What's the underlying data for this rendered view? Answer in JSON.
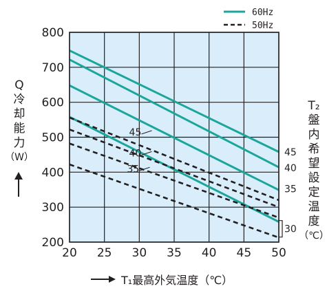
{
  "chart_data": {
    "type": "line",
    "title": "",
    "xlabel": "T₁最高外気温度（℃）",
    "ylabel_chars": [
      "Q",
      "冷",
      "却",
      "能",
      "力",
      "（W）"
    ],
    "right_label_chars": [
      "T₂",
      "盤",
      "内",
      "希",
      "望",
      "設",
      "定",
      "温",
      "度",
      "（℃）"
    ],
    "xlim": [
      20,
      50
    ],
    "ylim": [
      200,
      800
    ],
    "x_ticks": [
      "20",
      "25",
      "30",
      "35",
      "40",
      "45",
      "50"
    ],
    "y_ticks": [
      "200",
      "300",
      "400",
      "500",
      "600",
      "700",
      "800"
    ],
    "grid": true,
    "legend_position": "top-right",
    "legend": [
      {
        "label": "60Hz",
        "style": "solid",
        "color": "#1aa69a"
      },
      {
        "label": "50Hz",
        "style": "dashed",
        "color": "#231f20"
      }
    ],
    "series": [
      {
        "group": "60Hz",
        "t2": "45",
        "x": [
          20,
          50
        ],
        "y": [
          748,
          458
        ]
      },
      {
        "group": "60Hz",
        "t2": "40",
        "x": [
          20,
          50
        ],
        "y": [
          722,
          414
        ]
      },
      {
        "group": "60Hz",
        "t2": "35",
        "x": [
          20,
          50
        ],
        "y": [
          648,
          349
        ]
      },
      {
        "group": "60Hz",
        "t2": "30",
        "x": [
          20,
          50
        ],
        "y": [
          558,
          258
        ]
      },
      {
        "group": "50Hz",
        "t2": "45",
        "x": [
          20,
          50
        ],
        "y": [
          556,
          320
        ]
      },
      {
        "group": "50Hz",
        "t2": "40",
        "x": [
          20,
          50
        ],
        "y": [
          522,
          300
        ]
      },
      {
        "group": "50Hz",
        "t2": "35",
        "x": [
          20,
          50
        ],
        "y": [
          482,
          270
        ]
      },
      {
        "group": "50Hz",
        "t2": "30",
        "x": [
          20,
          50
        ],
        "y": [
          422,
          213
        ]
      }
    ],
    "right_annotations": [
      {
        "text": "45",
        "y": 458
      },
      {
        "text": "40",
        "y": 412
      },
      {
        "text": "35",
        "y": 352
      },
      {
        "text": "30",
        "y": 238
      }
    ],
    "inline_annotations": [
      {
        "text": "45",
        "x": 31.5,
        "y": 515
      },
      {
        "text": "40",
        "x": 31.5,
        "y": 455
      },
      {
        "text": "35",
        "x": 31.2,
        "y": 410
      }
    ]
  },
  "colors": {
    "plot_background": "#d9eefa",
    "solid_line": "#1aa69a",
    "dashed_line": "#231f20",
    "grid": "#231f20"
  }
}
